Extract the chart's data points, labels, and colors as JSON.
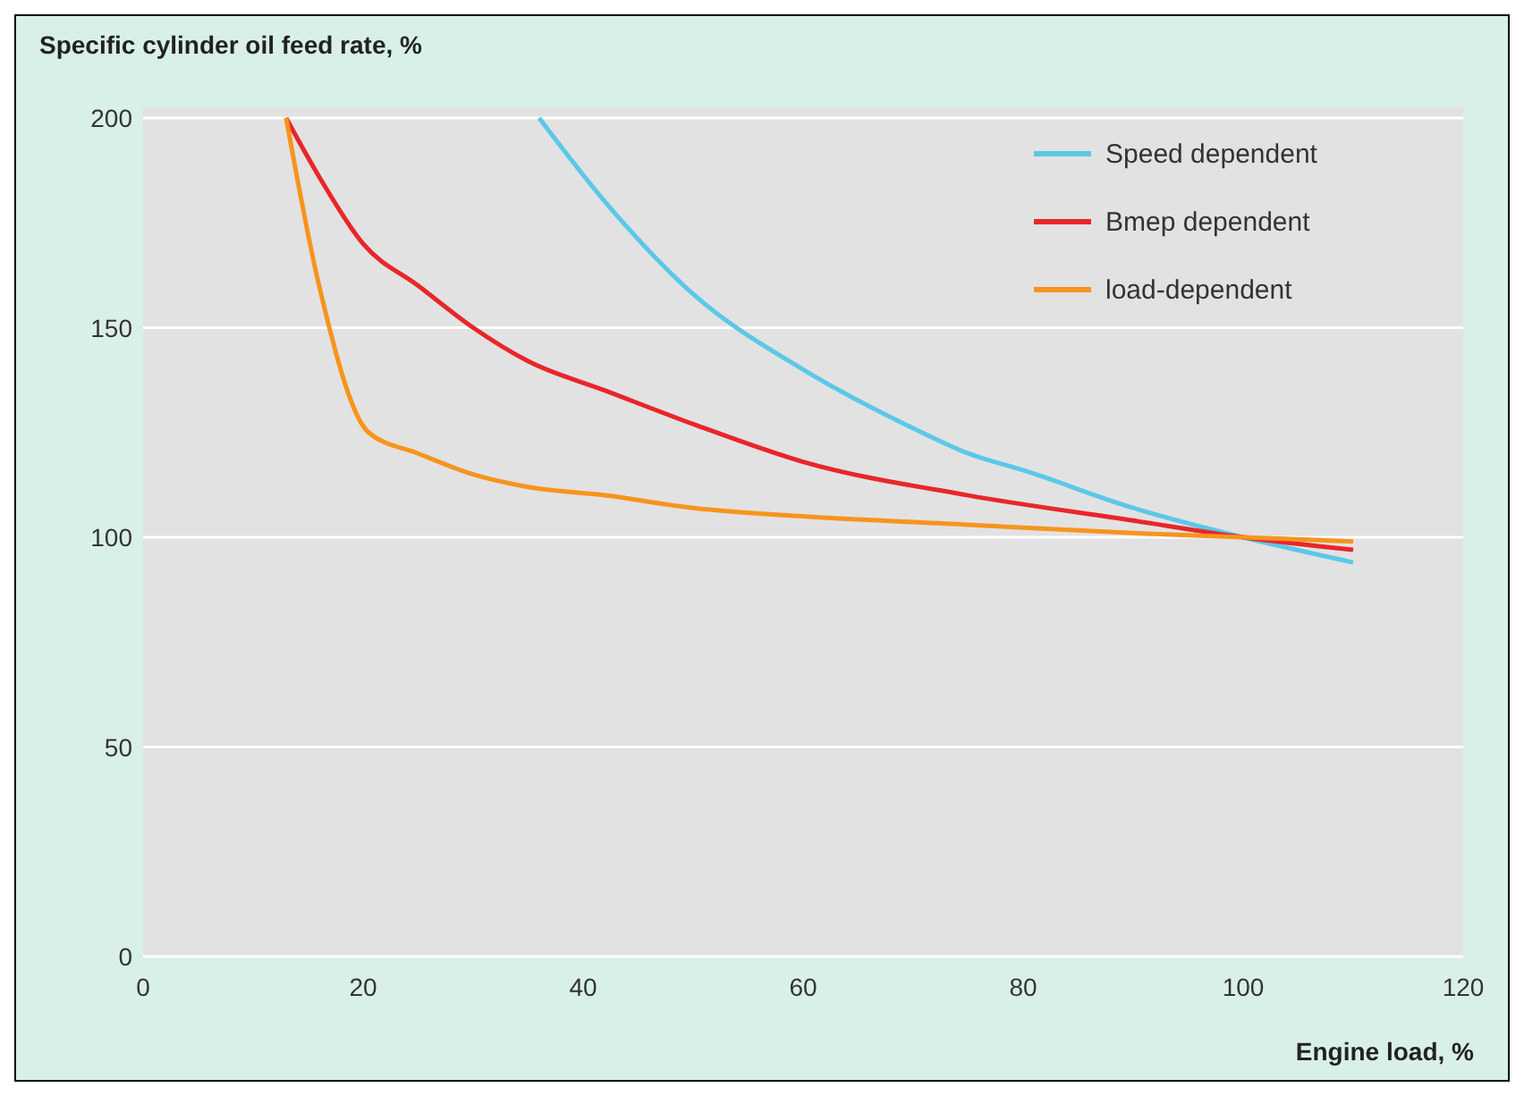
{
  "chart_data": {
    "type": "line",
    "ylabel": "Specific cylinder oil feed rate, %",
    "xlabel": "Engine load, %",
    "xlim": [
      0,
      120
    ],
    "xticks": [
      0,
      20,
      40,
      60,
      80,
      100,
      120
    ],
    "ylim": [
      0,
      200
    ],
    "yticks": [
      0,
      50,
      100,
      150,
      200
    ],
    "grid": "y",
    "legend": "top right",
    "marker": "none",
    "line_style": "solid",
    "series": [
      {
        "name": "Speed dependent",
        "color": "#5bc8e8",
        "x": [
          36,
          42,
          50,
          60,
          70,
          75,
          80,
          90,
          100,
          110
        ],
        "values": [
          200,
          180,
          158,
          140,
          126,
          120,
          116,
          107,
          100,
          94
        ]
      },
      {
        "name": "Bmep dependent",
        "color": "#e8262a",
        "x": [
          13,
          16,
          20,
          25,
          30,
          35,
          42,
          50,
          60,
          75,
          90,
          100,
          110
        ],
        "values": [
          200,
          186,
          170,
          160,
          150,
          142,
          135,
          127,
          118,
          110,
          104,
          100,
          97
        ]
      },
      {
        "name": "load-dependent",
        "color": "#f7941d",
        "x": [
          13,
          16,
          20.5,
          25,
          30,
          35,
          42,
          50,
          60,
          75,
          90,
          100,
          110
        ],
        "values": [
          200,
          160,
          125,
          120,
          115,
          112,
          110,
          107,
          105,
          103,
          101,
          100,
          99
        ]
      }
    ]
  }
}
